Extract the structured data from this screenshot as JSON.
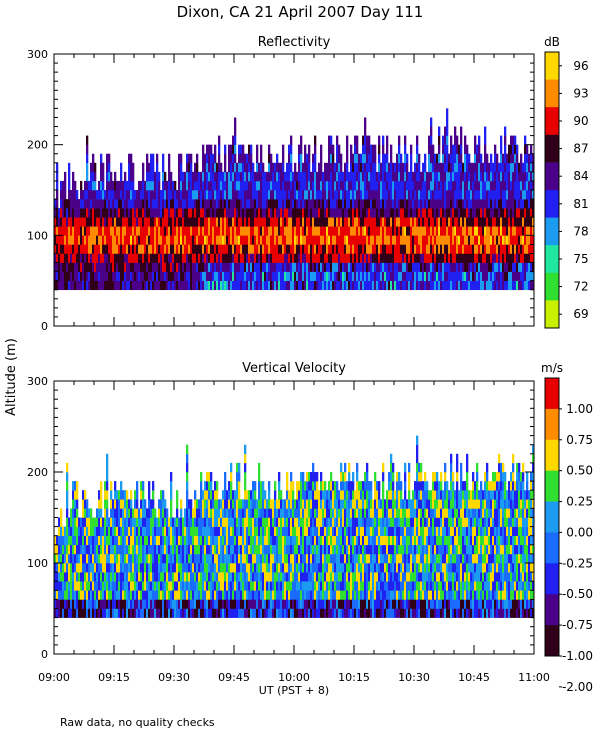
{
  "figure": {
    "title": "Dixon, CA 21 April 2007  Day 111",
    "y_axis_label": "Altitude (m)",
    "x_axis_label": "UT  (PST + 8)",
    "x_tick_labels": [
      "09:00",
      "09:15",
      "09:30",
      "09:45",
      "10:00",
      "10:15",
      "10:30",
      "10:45",
      "11:00"
    ],
    "footnote": "Raw data, no quality checks"
  },
  "chart_data": [
    {
      "type": "heatmap",
      "title": "Reflectivity",
      "xlabel": "UT  (PST + 8)",
      "ylabel": "Altitude (m)",
      "xlim": [
        "09:00",
        "11:00"
      ],
      "ylim": [
        0,
        300
      ],
      "y_ticks": [
        0,
        100,
        200,
        300
      ],
      "data_floor_m": 40,
      "colorbar": {
        "unit": "dB",
        "min": 67.5,
        "max": 97.5,
        "labels": [
          "96",
          "93",
          "90",
          "87",
          "84",
          "81",
          "78",
          "75",
          "72",
          "69"
        ],
        "colors": [
          "#ffd800",
          "#ff8c00",
          "#e80000",
          "#300018",
          "#4a0088",
          "#2020f0",
          "#1c9cf0",
          "#20e8a0",
          "#30e030",
          "#c8f000"
        ]
      },
      "echo_top_profile": {
        "minutes": [
          0,
          5,
          10,
          20,
          30,
          40,
          50,
          60,
          70,
          80,
          90,
          100,
          110,
          120
        ],
        "top_m": [
          140,
          160,
          160,
          165,
          160,
          180,
          180,
          180,
          185,
          185,
          180,
          195,
          190,
          190
        ]
      },
      "echo_core_altitude_m": [
        80,
        110
      ]
    },
    {
      "type": "heatmap",
      "title": "Vertical Velocity",
      "xlabel": "UT  (PST + 8)",
      "ylabel": "Altitude (m)",
      "xlim": [
        "09:00",
        "11:00"
      ],
      "ylim": [
        0,
        300
      ],
      "y_ticks": [
        0,
        100,
        200,
        300
      ],
      "data_floor_m": 40,
      "colorbar": {
        "unit": "m/s",
        "min": -2.0,
        "max": 1.25,
        "labels": [
          "1.00",
          "0.75",
          "0.50",
          "0.25",
          "0.00",
          "-0.25",
          "-0.50",
          "-0.75",
          "-1.00",
          "-2.00"
        ],
        "colors": [
          "#e80000",
          "#ff8c00",
          "#ffd800",
          "#30e030",
          "#1c9cf0",
          "#1a6cff",
          "#2020f0",
          "#4a0088",
          "#300018"
        ]
      },
      "echo_top_profile": {
        "minutes": [
          0,
          5,
          10,
          20,
          30,
          40,
          50,
          60,
          70,
          80,
          90,
          100,
          110,
          120
        ],
        "top_m": [
          140,
          160,
          160,
          165,
          160,
          180,
          180,
          180,
          185,
          185,
          180,
          195,
          190,
          190
        ]
      }
    }
  ]
}
